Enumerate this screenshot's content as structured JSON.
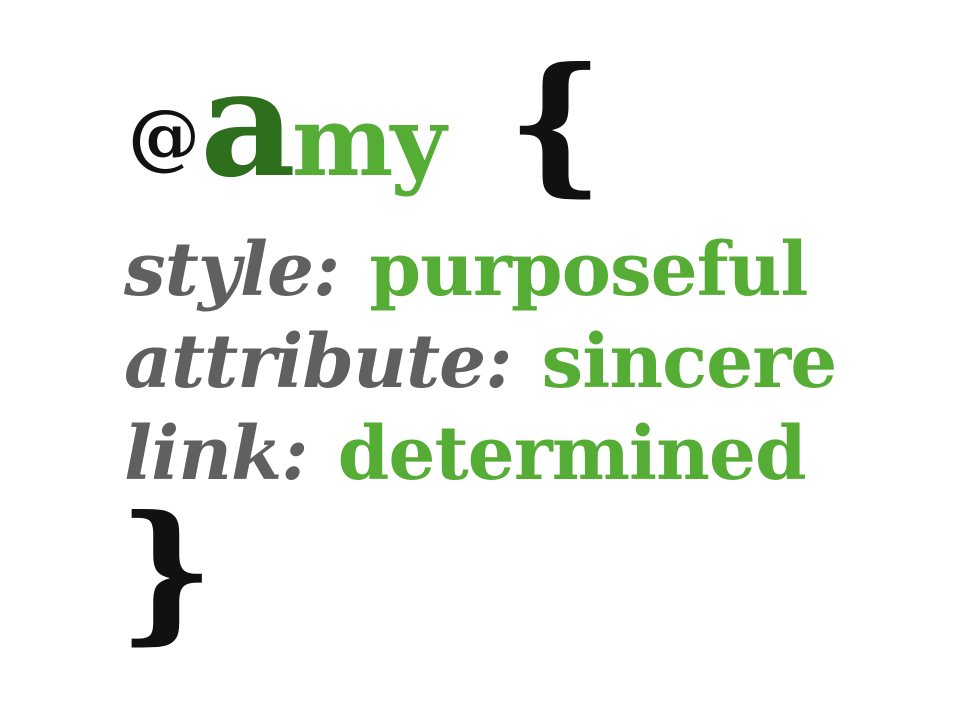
{
  "heading": {
    "at": "@",
    "first_letter": "a",
    "rest": "my",
    "open_brace": "{"
  },
  "rules": [
    {
      "key": "style:",
      "value": "purposeful"
    },
    {
      "key": "attribute:",
      "value": "sincere"
    },
    {
      "key": "link:",
      "value": "determined"
    }
  ],
  "closing": {
    "close_brace": "}"
  },
  "colors": {
    "dark_green": "#2e6f1e",
    "green": "#55ad35",
    "gray": "#606060",
    "black": "#111111"
  }
}
